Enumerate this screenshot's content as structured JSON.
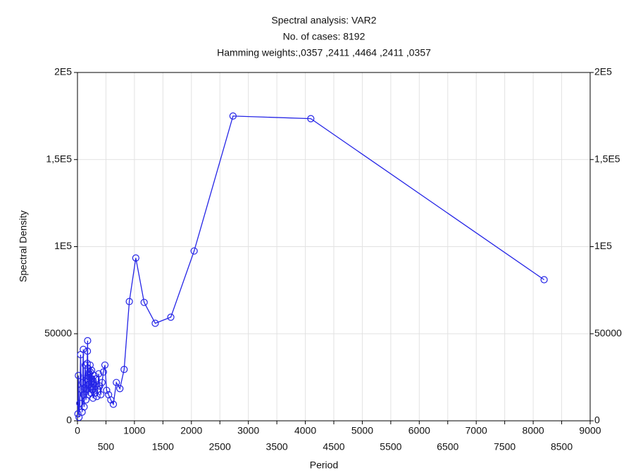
{
  "chart_data": {
    "type": "line",
    "title": "Spectral analysis: VAR2",
    "subtitle": [
      "No. of cases: 8192",
      "Hamming weights:,0357 ,2411 ,4464 ,2411 ,0357"
    ],
    "x_label": "Period",
    "y_label": "Spectral Density",
    "xlim": [
      0,
      9000
    ],
    "ylim": [
      0,
      200000
    ],
    "xticks": [
      0,
      500,
      1000,
      1500,
      2000,
      2500,
      3000,
      3500,
      4000,
      4500,
      5000,
      5500,
      6000,
      6500,
      7000,
      7500,
      8000,
      8500,
      9000
    ],
    "yticks": [
      0,
      50000,
      {
        "value": 100000,
        "label": "1E5"
      },
      {
        "value": 150000,
        "label": "1,5E5"
      },
      {
        "value": 200000,
        "label": "2E5"
      }
    ],
    "grid": true,
    "markers": "open-circle",
    "series": [
      {
        "color": "#2424e6",
        "x": [
          8192,
          4096,
          2730.67,
          2048,
          1638.4,
          1365.33,
          1170.29,
          1024,
          910.22,
          819.2,
          744.73,
          682.67,
          630.15,
          585.14,
          546.13,
          512,
          481.88,
          455.11,
          431.16,
          409.6,
          390.1,
          372.36,
          356.17,
          341.33,
          327.68,
          315.08,
          303.41,
          292.57,
          282.48,
          273.07,
          264.26,
          256,
          248.24,
          240.94,
          234.06,
          227.56,
          221.41,
          215.58,
          210.05,
          204.8,
          199.8,
          195.05,
          190.51,
          186.18,
          182.04,
          178.09,
          174.3,
          170.67,
          167.18,
          163.84,
          148.95,
          136.53,
          126.03,
          117.03,
          109.23,
          102.4,
          91.02,
          81.92,
          68.27,
          54.61,
          40.96,
          27.31,
          16.38,
          8.19
        ],
        "values": [
          81000,
          173500,
          175000,
          97500,
          59500,
          56000,
          68000,
          93500,
          68500,
          29500,
          18500,
          22000,
          9500,
          12000,
          15000,
          17500,
          32000,
          28000,
          22000,
          15000,
          20000,
          27000,
          18000,
          14000,
          24000,
          20000,
          16000,
          26000,
          21000,
          13000,
          18000,
          24000,
          29000,
          22000,
          16000,
          28000,
          32000,
          25000,
          19000,
          27000,
          21000,
          15000,
          23000,
          30000,
          26000,
          46000,
          40000,
          33000,
          24000,
          18000,
          12000,
          32000,
          19000,
          8000,
          15000,
          41000,
          22000,
          5000,
          18000,
          38000,
          10000,
          2000,
          26000,
          4000
        ]
      }
    ]
  }
}
